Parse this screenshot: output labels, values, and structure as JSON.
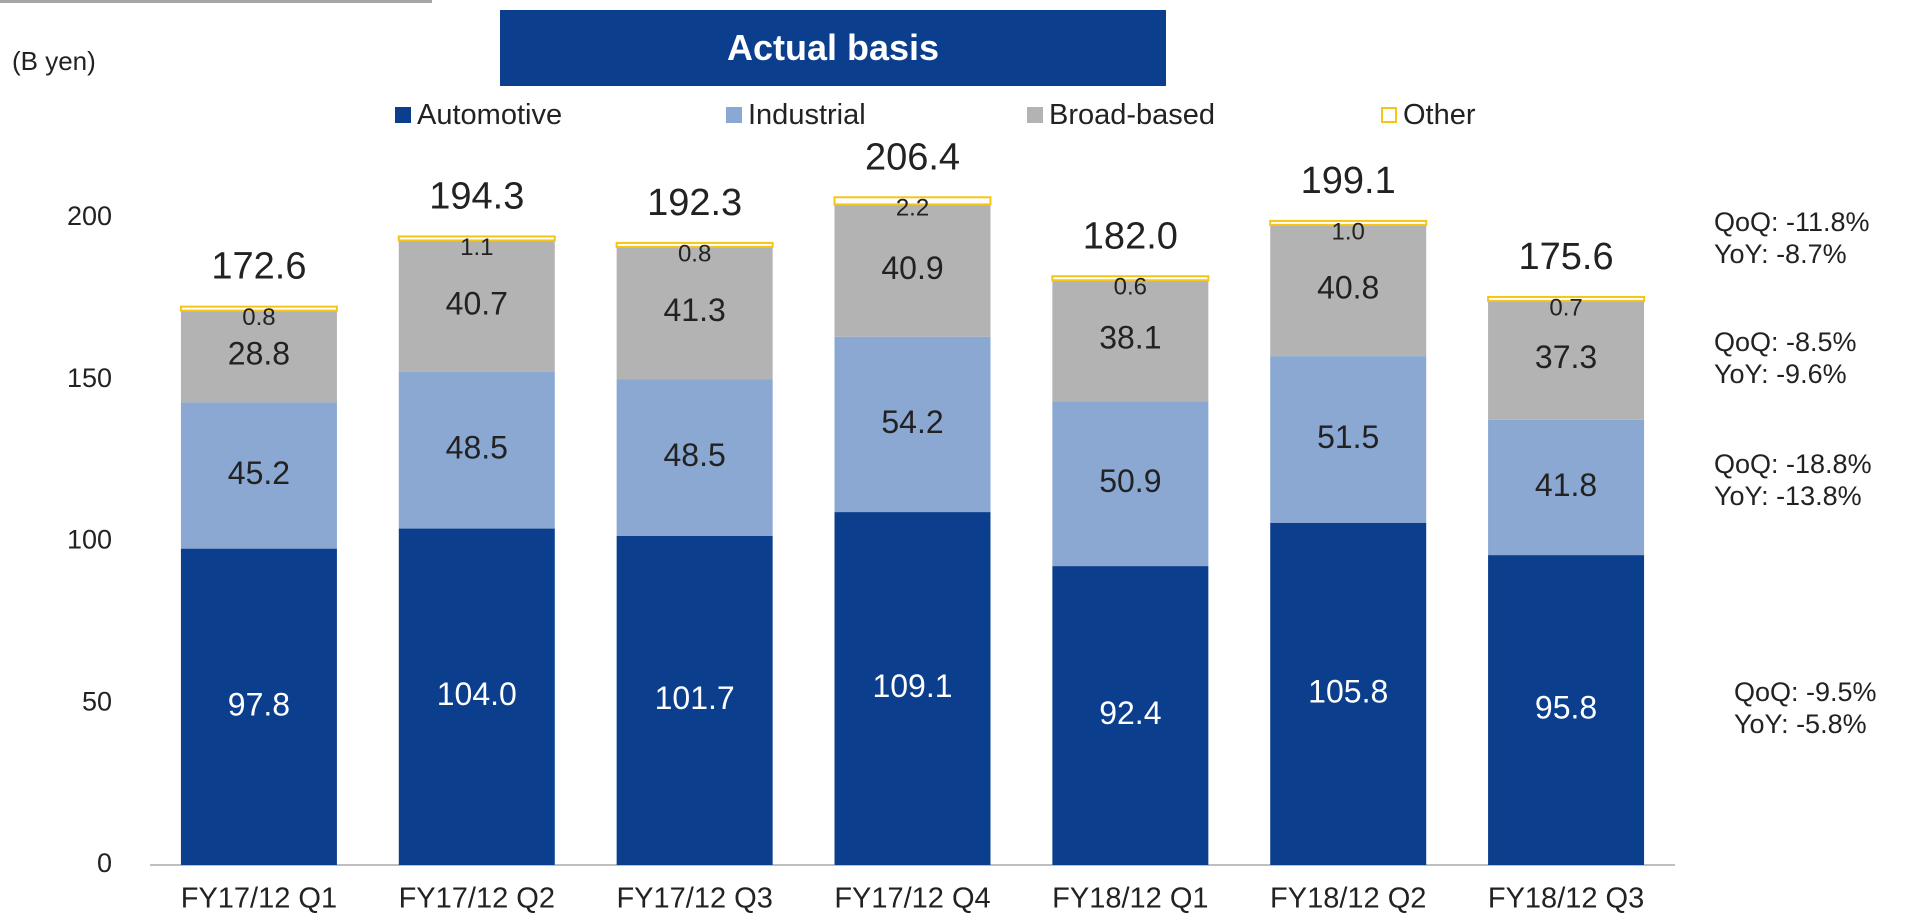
{
  "chart_data": {
    "type": "bar",
    "stacked": true,
    "title": "Actual basis",
    "ylabel": "(B yen)",
    "ylim": [
      0,
      200
    ],
    "yticks": [
      0,
      50,
      100,
      150,
      200
    ],
    "categories": [
      "FY17/12 Q1",
      "FY17/12 Q2",
      "FY17/12 Q3",
      "FY17/12 Q4",
      "FY18/12 Q1",
      "FY18/12 Q2",
      "FY18/12 Q3"
    ],
    "series": [
      {
        "name": "Automotive",
        "color": "#0b3f8e",
        "values": [
          97.8,
          104.0,
          101.7,
          109.1,
          92.4,
          105.8,
          95.8
        ]
      },
      {
        "name": "Industrial",
        "color": "#8aa8d2",
        "values": [
          45.2,
          48.5,
          48.5,
          54.2,
          50.9,
          51.5,
          41.8
        ]
      },
      {
        "name": "Broad-based",
        "color": "#b3b3b3",
        "values": [
          28.8,
          40.7,
          41.3,
          40.9,
          38.1,
          40.8,
          37.3
        ]
      },
      {
        "name": "Other",
        "color": "#f5c518",
        "values": [
          0.8,
          1.1,
          0.8,
          2.2,
          0.6,
          1.0,
          0.7
        ]
      }
    ],
    "totals": [
      172.6,
      194.3,
      192.3,
      206.4,
      182.0,
      199.1,
      175.6
    ],
    "annotations": [
      {
        "series": "Broad-based",
        "lines": [
          "QoQ: -11.8%",
          "YoY: -8.7%"
        ]
      },
      {
        "series": "Industrial",
        "lines": [
          "QoQ: -8.5%",
          "YoY: -9.6%"
        ]
      },
      {
        "series": "Industrial2",
        "lines": [
          "QoQ: -18.8%",
          "YoY: -13.8%"
        ]
      },
      {
        "series": "Automotive",
        "lines": [
          "QoQ: -9.5%",
          "YoY: -5.8%"
        ]
      }
    ],
    "legend_position": "top"
  }
}
